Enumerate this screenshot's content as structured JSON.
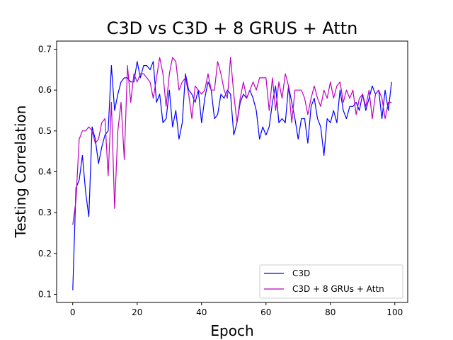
{
  "chart_data": {
    "type": "line",
    "title": "C3D vs C3D + 8 GRUS + Attn",
    "xlabel": "Epoch",
    "ylabel": "Testing Correlation",
    "xlim": [
      -5,
      104
    ],
    "ylim": [
      0.08,
      0.72
    ],
    "xticks": [
      0,
      20,
      40,
      60,
      80,
      100
    ],
    "yticks": [
      0.1,
      0.2,
      0.3,
      0.4,
      0.5,
      0.6,
      0.7
    ],
    "grid": false,
    "legend_position": "lower right",
    "series": [
      {
        "name": "C3D",
        "color": "#0000ff",
        "x": [
          0,
          1,
          2,
          3,
          4,
          5,
          6,
          7,
          8,
          9,
          10,
          11,
          12,
          13,
          14,
          15,
          16,
          17,
          18,
          19,
          20,
          21,
          22,
          23,
          24,
          25,
          26,
          27,
          28,
          29,
          30,
          31,
          32,
          33,
          34,
          35,
          36,
          37,
          38,
          39,
          40,
          41,
          42,
          43,
          44,
          45,
          46,
          47,
          48,
          49,
          50,
          51,
          52,
          53,
          54,
          55,
          56,
          57,
          58,
          59,
          60,
          61,
          62,
          63,
          64,
          65,
          66,
          67,
          68,
          69,
          70,
          71,
          72,
          73,
          74,
          75,
          76,
          77,
          78,
          79,
          80,
          81,
          82,
          83,
          84,
          85,
          86,
          87,
          88,
          89,
          90,
          91,
          92,
          93,
          94,
          95,
          96,
          97,
          98,
          99
        ],
        "values": [
          0.11,
          0.36,
          0.38,
          0.44,
          0.35,
          0.29,
          0.51,
          0.48,
          0.42,
          0.46,
          0.49,
          0.5,
          0.66,
          0.55,
          0.59,
          0.62,
          0.63,
          0.63,
          0.62,
          0.62,
          0.67,
          0.63,
          0.66,
          0.66,
          0.65,
          0.67,
          0.57,
          0.59,
          0.52,
          0.53,
          0.6,
          0.51,
          0.55,
          0.48,
          0.52,
          0.64,
          0.6,
          0.59,
          0.57,
          0.6,
          0.52,
          0.58,
          0.62,
          0.6,
          0.53,
          0.54,
          0.59,
          0.58,
          0.6,
          0.59,
          0.49,
          0.52,
          0.57,
          0.59,
          0.58,
          0.6,
          0.58,
          0.55,
          0.48,
          0.51,
          0.49,
          0.51,
          0.57,
          0.61,
          0.52,
          0.53,
          0.52,
          0.61,
          0.57,
          0.53,
          0.48,
          0.53,
          0.53,
          0.47,
          0.56,
          0.58,
          0.53,
          0.51,
          0.44,
          0.53,
          0.52,
          0.55,
          0.52,
          0.6,
          0.55,
          0.53,
          0.56,
          0.56,
          0.57,
          0.55,
          0.59,
          0.55,
          0.58,
          0.61,
          0.59,
          0.6,
          0.53,
          0.6,
          0.55,
          0.62
        ]
      },
      {
        "name": "C3D + 8 GRUs + Attn",
        "color": "#bf00bf",
        "x": [
          0,
          1,
          2,
          3,
          4,
          5,
          6,
          7,
          8,
          9,
          10,
          11,
          12,
          13,
          14,
          15,
          16,
          17,
          18,
          19,
          20,
          21,
          22,
          23,
          24,
          25,
          26,
          27,
          28,
          29,
          30,
          31,
          32,
          33,
          34,
          35,
          36,
          37,
          38,
          39,
          40,
          41,
          42,
          43,
          44,
          45,
          46,
          47,
          48,
          49,
          50,
          51,
          52,
          53,
          54,
          55,
          56,
          57,
          58,
          59,
          60,
          61,
          62,
          63,
          64,
          65,
          66,
          67,
          68,
          69,
          70,
          71,
          72,
          73,
          74,
          75,
          76,
          77,
          78,
          79,
          80,
          81,
          82,
          83,
          84,
          85,
          86,
          87,
          88,
          89,
          90,
          91,
          92,
          93,
          94,
          95,
          96,
          97,
          98,
          99
        ],
        "values": [
          0.27,
          0.33,
          0.48,
          0.5,
          0.5,
          0.51,
          0.5,
          0.47,
          0.48,
          0.52,
          0.53,
          0.39,
          0.57,
          0.31,
          0.5,
          0.57,
          0.43,
          0.66,
          0.57,
          0.64,
          0.62,
          0.64,
          0.64,
          0.63,
          0.62,
          0.58,
          0.63,
          0.68,
          0.64,
          0.56,
          0.64,
          0.68,
          0.67,
          0.6,
          0.62,
          0.63,
          0.59,
          0.53,
          0.61,
          0.6,
          0.59,
          0.6,
          0.64,
          0.6,
          0.6,
          0.67,
          0.64,
          0.6,
          0.58,
          0.68,
          0.59,
          0.52,
          0.58,
          0.62,
          0.58,
          0.6,
          0.62,
          0.6,
          0.63,
          0.63,
          0.63,
          0.55,
          0.63,
          0.55,
          0.62,
          0.58,
          0.64,
          0.61,
          0.52,
          0.6,
          0.6,
          0.6,
          0.58,
          0.54,
          0.58,
          0.61,
          0.58,
          0.56,
          0.6,
          0.58,
          0.62,
          0.58,
          0.61,
          0.62,
          0.57,
          0.6,
          0.58,
          0.6,
          0.54,
          0.58,
          0.59,
          0.56,
          0.6,
          0.53,
          0.59,
          0.6,
          0.58,
          0.53,
          0.57,
          0.57
        ]
      }
    ]
  }
}
